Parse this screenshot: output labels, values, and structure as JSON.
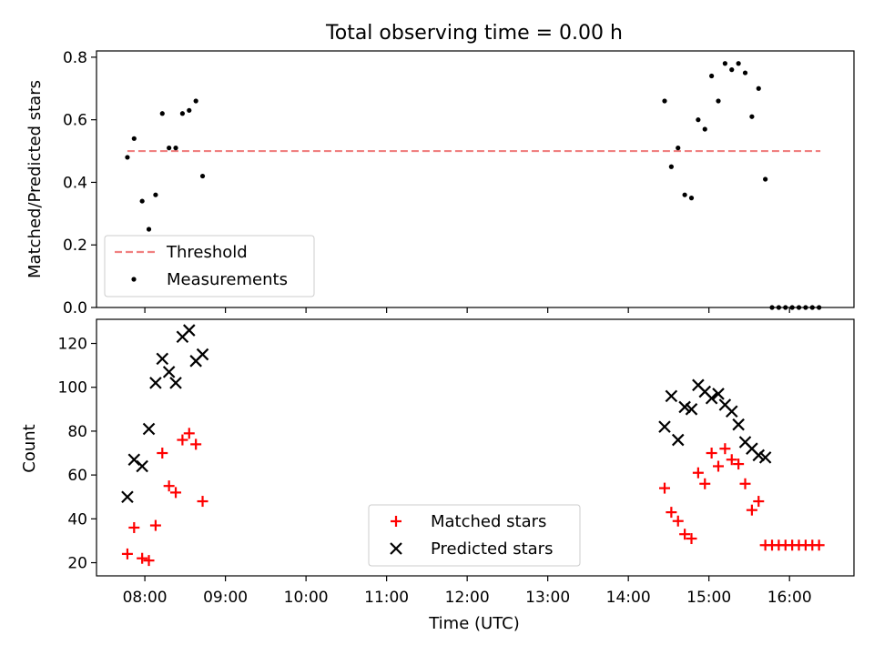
{
  "title": "Total observing time = 0.00 h",
  "chart_data": [
    {
      "type": "scatter",
      "panel": "top",
      "ylabel": "Matched/Predicted stars",
      "xlabel": "",
      "ylim": [
        0.0,
        0.82
      ],
      "yticks": [
        0.0,
        0.2,
        0.4,
        0.6,
        0.8
      ],
      "ytick_labels": [
        "0.0",
        "0.2",
        "0.4",
        "0.6",
        "0.8"
      ],
      "legend_placement": "lower-left",
      "grid": false,
      "threshold": {
        "name": "Threshold",
        "value": 0.5,
        "x_start": "07:47",
        "x_end": "16:23",
        "color": "#f08080",
        "style": "dashed"
      },
      "series": [
        {
          "name": "Measurements",
          "color": "#000000",
          "marker": "dot",
          "x": [
            "07:47",
            "07:52",
            "07:58",
            "08:03",
            "08:08",
            "08:13",
            "08:18",
            "08:23",
            "08:28",
            "08:33",
            "08:38",
            "08:43",
            "14:27",
            "14:32",
            "14:37",
            "14:42",
            "14:47",
            "14:52",
            "14:57",
            "15:02",
            "15:07",
            "15:12",
            "15:17",
            "15:22",
            "15:27",
            "15:32",
            "15:37",
            "15:42",
            "15:47",
            "15:52",
            "15:57",
            "16:02",
            "16:07",
            "16:12",
            "16:17",
            "16:22"
          ],
          "y": [
            0.48,
            0.54,
            0.34,
            0.25,
            0.36,
            0.62,
            0.51,
            0.51,
            0.62,
            0.63,
            0.66,
            0.42,
            0.66,
            0.45,
            0.51,
            0.36,
            0.35,
            0.6,
            0.57,
            0.74,
            0.66,
            0.78,
            0.76,
            0.78,
            0.75,
            0.61,
            0.7,
            0.41,
            0.0,
            0.0,
            0.0,
            0.0,
            0.0,
            0.0,
            0.0,
            0.0
          ]
        }
      ]
    },
    {
      "type": "scatter",
      "panel": "bottom",
      "ylabel": "Count",
      "xlabel": "Time (UTC)",
      "ylim": [
        14.0,
        131.0
      ],
      "yticks": [
        20,
        40,
        60,
        80,
        100,
        120
      ],
      "ytick_labels": [
        "20",
        "40",
        "60",
        "80",
        "100",
        "120"
      ],
      "xlim": [
        "07:24",
        "16:48"
      ],
      "xticks": [
        "08:00",
        "09:00",
        "10:00",
        "11:00",
        "12:00",
        "13:00",
        "14:00",
        "15:00",
        "16:00"
      ],
      "xtick_labels": [
        "08:00",
        "09:00",
        "10:00",
        "11:00",
        "12:00",
        "13:00",
        "14:00",
        "15:00",
        "16:00"
      ],
      "legend_placement": "lower-center",
      "grid": false,
      "series": [
        {
          "name": "Matched stars",
          "color": "#ff0000",
          "marker": "plus",
          "x": [
            "07:47",
            "07:52",
            "07:58",
            "08:03",
            "08:08",
            "08:13",
            "08:18",
            "08:23",
            "08:28",
            "08:33",
            "08:38",
            "08:43",
            "14:27",
            "14:32",
            "14:37",
            "14:42",
            "14:47",
            "14:52",
            "14:57",
            "15:02",
            "15:07",
            "15:12",
            "15:17",
            "15:22",
            "15:27",
            "15:32",
            "15:37",
            "15:42",
            "15:47",
            "15:52",
            "15:57",
            "16:02",
            "16:07",
            "16:12",
            "16:17",
            "16:22"
          ],
          "y": [
            24,
            36,
            22,
            21,
            37,
            70,
            55,
            52,
            76,
            79,
            74,
            48,
            54,
            43,
            39,
            33,
            31,
            61,
            56,
            70,
            64,
            72,
            67,
            65,
            56,
            44,
            48,
            28,
            28,
            28,
            28,
            28,
            28,
            28,
            28,
            28
          ]
        },
        {
          "name": "Predicted stars",
          "color": "#000000",
          "marker": "x",
          "x": [
            "07:47",
            "07:52",
            "07:58",
            "08:03",
            "08:08",
            "08:13",
            "08:18",
            "08:23",
            "08:28",
            "08:33",
            "08:38",
            "08:43",
            "14:27",
            "14:32",
            "14:37",
            "14:42",
            "14:47",
            "14:52",
            "14:57",
            "15:02",
            "15:07",
            "15:12",
            "15:17",
            "15:22",
            "15:27",
            "15:32",
            "15:37",
            "15:42"
          ],
          "y": [
            50,
            67,
            64,
            81,
            102,
            113,
            107,
            102,
            123,
            126,
            112,
            115,
            82,
            96,
            76,
            91,
            90,
            101,
            98,
            95,
            97,
            92,
            89,
            83,
            75,
            72,
            69,
            68
          ]
        }
      ]
    }
  ]
}
